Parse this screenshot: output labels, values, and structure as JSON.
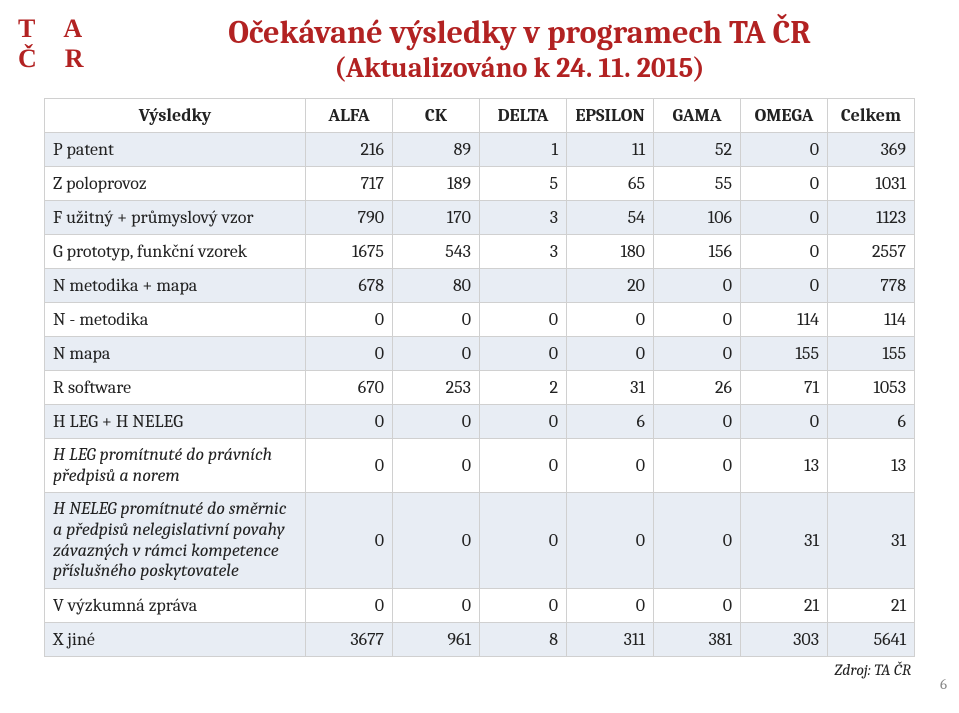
{
  "logo": {
    "r1c1": "T",
    "r1c2": "A",
    "r2c1": "Č",
    "r2c2": "R"
  },
  "title": "Očekávané výsledky v programech TA ČR",
  "subtitle": "(Aktualizováno k 24. 11. 2015)",
  "colors": {
    "accent": "#b22222",
    "band": "#e8edf4",
    "border": "#d0d0d0",
    "text": "#222"
  },
  "columns": [
    "Výsledky",
    "ALFA",
    "CK",
    "DELTA",
    "EPSILON",
    "GAMA",
    "OMEGA",
    "Celkem"
  ],
  "rows": [
    {
      "label": "P patent",
      "vals": [
        "216",
        "89",
        "1",
        "11",
        "52",
        "0",
        "369"
      ],
      "band": true
    },
    {
      "label": "Z poloprovoz",
      "vals": [
        "717",
        "189",
        "5",
        "65",
        "55",
        "0",
        "1031"
      ],
      "band": false
    },
    {
      "label": "F užitný + průmyslový vzor",
      "vals": [
        "790",
        "170",
        "3",
        "54",
        "106",
        "0",
        "1123"
      ],
      "band": true
    },
    {
      "label": "G prototyp, funkční vzorek",
      "vals": [
        "1675",
        "543",
        "3",
        "180",
        "156",
        "0",
        "2557"
      ],
      "band": false
    },
    {
      "label": "N metodika + mapa",
      "vals": [
        "678",
        "80",
        "",
        "20",
        "0",
        "0",
        "778"
      ],
      "band": true
    },
    {
      "label": "N - metodika",
      "vals": [
        "0",
        "0",
        "0",
        "0",
        "0",
        "114",
        "114"
      ],
      "band": false
    },
    {
      "label": "N mapa",
      "vals": [
        "0",
        "0",
        "0",
        "0",
        "0",
        "155",
        "155"
      ],
      "band": true
    },
    {
      "label": "R software",
      "vals": [
        "670",
        "253",
        "2",
        "31",
        "26",
        "71",
        "1053"
      ],
      "band": false
    },
    {
      "label": "H LEG + H NELEG",
      "vals": [
        "0",
        "0",
        "0",
        "6",
        "0",
        "0",
        "6"
      ],
      "band": true
    },
    {
      "label": "H LEG  promítnuté do právních předpisů a norem",
      "vals": [
        "0",
        "0",
        "0",
        "0",
        "0",
        "13",
        "13"
      ],
      "band": false,
      "italic": true,
      "multiline": true
    },
    {
      "label": "H NELEG  promítnuté do směrnic a předpisů nelegislativní povahy závazných v rámci kompetence příslušného poskytovatele",
      "vals": [
        "0",
        "0",
        "0",
        "0",
        "0",
        "31",
        "31"
      ],
      "band": true,
      "italic": true,
      "multiline": true
    },
    {
      "label": "V výzkumná zpráva",
      "vals": [
        "0",
        "0",
        "0",
        "0",
        "0",
        "21",
        "21"
      ],
      "band": false
    },
    {
      "label": "X jiné",
      "vals": [
        "3677",
        "961",
        "8",
        "311",
        "381",
        "303",
        "5641"
      ],
      "band": true
    }
  ],
  "source": "Zdroj: TA ČR",
  "page_number": "6"
}
